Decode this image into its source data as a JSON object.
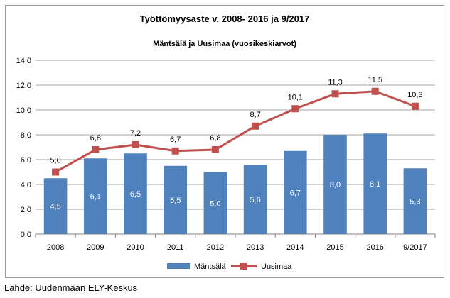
{
  "chart_data": {
    "type": "bar",
    "title": "Työttömyysaste v. 2008- 2016 ja 9/2017",
    "subtitle": "Mäntsälä ja Uusimaa (vuosikeskiarvot)",
    "categories": [
      "2008",
      "2009",
      "2010",
      "2011",
      "2012",
      "2013",
      "2014",
      "2015",
      "2016",
      "9/2017"
    ],
    "series": [
      {
        "name": "Mäntsälä",
        "type": "bar",
        "color": "#4f81bd",
        "values": [
          4.5,
          6.1,
          6.5,
          5.5,
          5.0,
          5.6,
          6.7,
          8.0,
          8.1,
          5.3
        ],
        "labels": [
          "4,5",
          "6,1",
          "6,5",
          "5,5",
          "5,0",
          "5,6",
          "6,7",
          "8,0",
          "8,1",
          "5,3"
        ]
      },
      {
        "name": "Uusimaa",
        "type": "line",
        "color": "#c0504d",
        "values": [
          5.0,
          6.8,
          7.2,
          6.7,
          6.8,
          8.7,
          10.1,
          11.3,
          11.5,
          10.3
        ],
        "labels": [
          "5,0",
          "6,8",
          "7,2",
          "6,7",
          "6,8",
          "8,7",
          "10,1",
          "11,3",
          "11,5",
          "10,3"
        ]
      }
    ],
    "ylim": [
      0,
      14
    ],
    "yticks": [
      "0,0",
      "2,0",
      "4,0",
      "6,0",
      "8,0",
      "10,0",
      "12,0",
      "14,0"
    ],
    "grid": true,
    "legend_position": "bottom"
  },
  "source_note": "Lähde: Uudenmaan ELY-Keskus"
}
